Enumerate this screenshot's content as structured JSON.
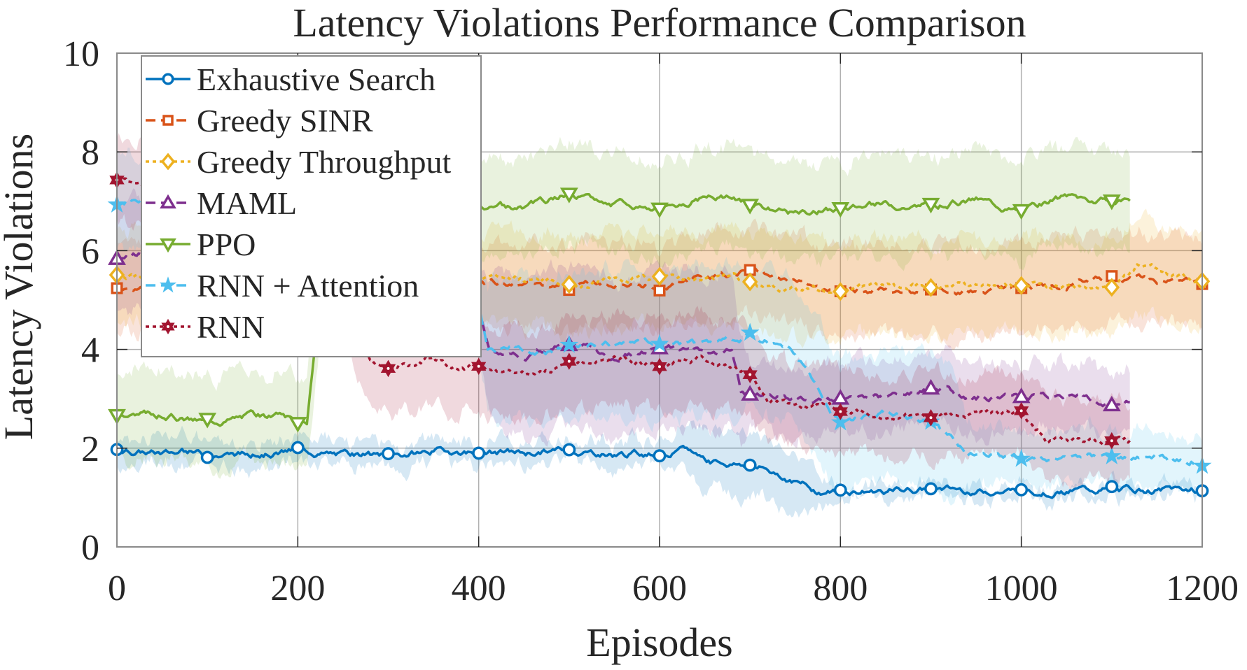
{
  "chart_data": {
    "type": "line",
    "title": "Latency Violations Performance Comparison",
    "xlabel": "Episodes",
    "ylabel": "Latency Violations",
    "xlim": [
      0,
      1200
    ],
    "ylim": [
      0,
      10
    ],
    "xticks": [
      0,
      200,
      400,
      600,
      800,
      1000,
      1200
    ],
    "xtick_labels": [
      "0",
      "200",
      "400",
      "600",
      "800",
      "1000",
      "1200"
    ],
    "yticks": [
      0,
      2,
      4,
      6,
      8,
      10
    ],
    "ytick_labels": [
      "0",
      "2",
      "4",
      "6",
      "8",
      "10"
    ],
    "grid": true,
    "legend_position": "top-left",
    "shaded_bands": "mean ± std",
    "marker_interval": 100,
    "series": [
      {
        "name": "Exhaustive Search",
        "color": "#0072BD",
        "line_style": "solid",
        "marker": "circle",
        "points": [
          [
            0,
            1.98
          ],
          [
            50,
            1.9
          ],
          [
            100,
            1.88
          ],
          [
            150,
            1.88
          ],
          [
            200,
            1.95
          ],
          [
            250,
            1.85
          ],
          [
            300,
            1.82
          ],
          [
            350,
            1.95
          ],
          [
            400,
            1.92
          ],
          [
            450,
            1.9
          ],
          [
            500,
            1.97
          ],
          [
            550,
            1.88
          ],
          [
            600,
            1.9
          ],
          [
            630,
            1.95
          ],
          [
            660,
            1.72
          ],
          [
            700,
            1.66
          ],
          [
            730,
            1.5
          ],
          [
            775,
            1.13
          ],
          [
            800,
            1.13
          ],
          [
            900,
            1.16
          ],
          [
            1000,
            1.13
          ],
          [
            1100,
            1.16
          ],
          [
            1200,
            1.16
          ]
        ],
        "band": [
          [
            0,
            0.25
          ],
          [
            600,
            0.25
          ],
          [
            640,
            0.6
          ],
          [
            760,
            0.55
          ],
          [
            800,
            0.12
          ],
          [
            1200,
            0.12
          ]
        ]
      },
      {
        "name": "Greedy SINR",
        "color": "#D95319",
        "line_style": "dashed",
        "marker": "square",
        "points": [
          [
            0,
            5.25
          ],
          [
            50,
            5.3
          ],
          [
            100,
            5.35
          ],
          [
            200,
            5.3
          ],
          [
            300,
            5.35
          ],
          [
            400,
            5.3
          ],
          [
            500,
            5.33
          ],
          [
            600,
            5.3
          ],
          [
            700,
            5.6
          ],
          [
            750,
            5.35
          ],
          [
            800,
            5.2
          ],
          [
            900,
            5.2
          ],
          [
            1000,
            5.2
          ],
          [
            1100,
            5.4
          ],
          [
            1200,
            5.35
          ]
        ],
        "band": [
          [
            0,
            0.85
          ],
          [
            1200,
            0.9
          ]
        ]
      },
      {
        "name": "Greedy Throughput",
        "color": "#EDB120",
        "line_style": "dotted",
        "marker": "diamond",
        "points": [
          [
            0,
            5.52
          ],
          [
            50,
            5.4
          ],
          [
            100,
            5.45
          ],
          [
            200,
            5.4
          ],
          [
            300,
            5.35
          ],
          [
            400,
            5.4
          ],
          [
            500,
            5.38
          ],
          [
            600,
            5.45
          ],
          [
            680,
            5.5
          ],
          [
            700,
            5.28
          ],
          [
            800,
            5.18
          ],
          [
            900,
            5.28
          ],
          [
            1000,
            5.3
          ],
          [
            1080,
            5.25
          ],
          [
            1100,
            5.22
          ],
          [
            1130,
            5.7
          ],
          [
            1200,
            5.35
          ]
        ],
        "band": [
          [
            0,
            0.95
          ],
          [
            1200,
            0.95
          ]
        ]
      },
      {
        "name": "MAML",
        "color": "#7E2F8E",
        "line_style": "dashed",
        "marker": "triangle-up",
        "points": [
          [
            0,
            5.85
          ],
          [
            30,
            6.0
          ],
          [
            200,
            5.95
          ],
          [
            390,
            5.9
          ],
          [
            400,
            4.72
          ],
          [
            412,
            3.9
          ],
          [
            450,
            3.85
          ],
          [
            500,
            4.15
          ],
          [
            550,
            3.85
          ],
          [
            600,
            4.05
          ],
          [
            650,
            4.0
          ],
          [
            680,
            3.95
          ],
          [
            690,
            3.1
          ],
          [
            700,
            3.05
          ],
          [
            750,
            3.0
          ],
          [
            800,
            3.05
          ],
          [
            850,
            3.0
          ],
          [
            900,
            3.2
          ],
          [
            950,
            3.0
          ],
          [
            1000,
            3.12
          ],
          [
            1050,
            3.1
          ],
          [
            1100,
            2.95
          ],
          [
            1120,
            2.92
          ]
        ],
        "band": [
          [
            0,
            1.1
          ],
          [
            400,
            1.0
          ],
          [
            420,
            1.6
          ],
          [
            680,
            1.6
          ],
          [
            700,
            0.7
          ],
          [
            1120,
            0.7
          ]
        ]
      },
      {
        "name": "PPO",
        "color": "#77AC30",
        "line_style": "solid",
        "marker": "triangle-down",
        "points": [
          [
            0,
            2.68
          ],
          [
            50,
            2.7
          ],
          [
            100,
            2.55
          ],
          [
            150,
            2.7
          ],
          [
            190,
            2.6
          ],
          [
            200,
            2.5
          ],
          [
            210,
            2.55
          ],
          [
            235,
            7.0
          ],
          [
            300,
            6.95
          ],
          [
            400,
            6.95
          ],
          [
            450,
            6.85
          ],
          [
            500,
            7.15
          ],
          [
            550,
            6.95
          ],
          [
            600,
            6.9
          ],
          [
            650,
            7.1
          ],
          [
            700,
            6.98
          ],
          [
            750,
            6.75
          ],
          [
            800,
            6.85
          ],
          [
            850,
            6.95
          ],
          [
            900,
            6.9
          ],
          [
            950,
            7.05
          ],
          [
            1000,
            6.8
          ],
          [
            1050,
            7.1
          ],
          [
            1100,
            6.98
          ],
          [
            1120,
            6.95
          ]
        ],
        "band": [
          [
            0,
            0.9
          ],
          [
            200,
            0.9
          ],
          [
            230,
            1.0
          ],
          [
            1120,
            1.0
          ]
        ]
      },
      {
        "name": "RNN + Attention",
        "color": "#4DBEEE",
        "line_style": "dashed",
        "marker": "star",
        "points": [
          [
            0,
            6.95
          ],
          [
            30,
            7.1
          ],
          [
            200,
            7.05
          ],
          [
            390,
            7.0
          ],
          [
            400,
            5.0
          ],
          [
            410,
            4.05
          ],
          [
            500,
            4.0
          ],
          [
            600,
            4.2
          ],
          [
            650,
            4.1
          ],
          [
            700,
            4.25
          ],
          [
            740,
            4.1
          ],
          [
            770,
            3.4
          ],
          [
            790,
            2.75
          ],
          [
            800,
            2.6
          ],
          [
            850,
            2.7
          ],
          [
            900,
            2.6
          ],
          [
            920,
            2.25
          ],
          [
            940,
            1.82
          ],
          [
            1000,
            1.82
          ],
          [
            1100,
            1.78
          ],
          [
            1200,
            1.78
          ]
        ],
        "band": [
          [
            0,
            1.0
          ],
          [
            400,
            1.0
          ],
          [
            420,
            1.5
          ],
          [
            760,
            1.5
          ],
          [
            800,
            1.3
          ],
          [
            920,
            1.3
          ],
          [
            950,
            0.55
          ],
          [
            1200,
            0.55
          ]
        ]
      },
      {
        "name": "RNN",
        "color": "#A2142F",
        "line_style": "dotted",
        "marker": "hexagram",
        "points": [
          [
            0,
            7.45
          ],
          [
            30,
            7.35
          ],
          [
            200,
            7.4
          ],
          [
            280,
            3.75
          ],
          [
            300,
            3.6
          ],
          [
            350,
            3.85
          ],
          [
            380,
            3.55
          ],
          [
            400,
            3.65
          ],
          [
            450,
            3.5
          ],
          [
            500,
            3.7
          ],
          [
            550,
            3.85
          ],
          [
            600,
            3.62
          ],
          [
            650,
            3.85
          ],
          [
            690,
            3.55
          ],
          [
            700,
            3.52
          ],
          [
            720,
            2.95
          ],
          [
            760,
            2.9
          ],
          [
            800,
            2.8
          ],
          [
            850,
            2.65
          ],
          [
            900,
            2.7
          ],
          [
            950,
            2.7
          ],
          [
            1000,
            2.65
          ],
          [
            1030,
            2.15
          ],
          [
            1100,
            2.12
          ],
          [
            1120,
            2.12
          ]
        ],
        "band": [
          [
            0,
            0.9
          ],
          [
            700,
            0.9
          ],
          [
            720,
            0.8
          ],
          [
            1120,
            0.8
          ]
        ]
      }
    ]
  }
}
